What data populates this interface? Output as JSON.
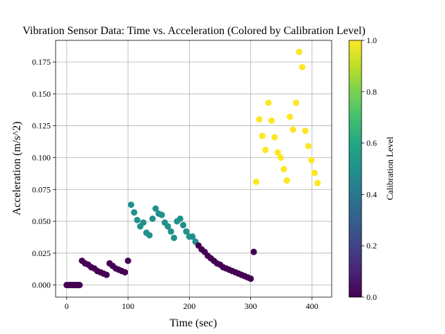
{
  "chart_data": {
    "type": "scatter",
    "title": "Vibration Sensor Data: Time vs. Acceleration (Colored by Calibration Level)",
    "xlabel": "Time (sec)",
    "ylabel": "Acceleration (m/s^2)",
    "xlim": [
      -18,
      432
    ],
    "ylim": [
      -0.0095,
      0.192
    ],
    "xticks": [
      0,
      100,
      200,
      300,
      400
    ],
    "yticks": [
      0.0,
      0.025,
      0.05,
      0.075,
      0.1,
      0.125,
      0.15,
      0.175
    ],
    "xtick_labels": [
      "0",
      "100",
      "200",
      "300",
      "400"
    ],
    "ytick_labels": [
      "0.000",
      "0.025",
      "0.050",
      "0.075",
      "0.100",
      "0.125",
      "0.150",
      "0.175"
    ],
    "grid": true,
    "colormap": "viridis",
    "colorbar": {
      "label": "Calibration Level",
      "range": [
        0.0,
        1.0
      ],
      "ticks": [
        0.0,
        0.2,
        0.4,
        0.6,
        0.8,
        1.0
      ],
      "tick_labels": [
        "0.0",
        "0.2",
        "0.4",
        "0.6",
        "0.8",
        "1.0"
      ]
    },
    "points": [
      {
        "x": 0,
        "y": 0.0,
        "c": 0.0
      },
      {
        "x": 3,
        "y": 0.0,
        "c": 0.0
      },
      {
        "x": 6,
        "y": 0.0,
        "c": 0.0
      },
      {
        "x": 9,
        "y": 0.0,
        "c": 0.0
      },
      {
        "x": 12,
        "y": 0.0,
        "c": 0.0
      },
      {
        "x": 15,
        "y": 0.0,
        "c": 0.0
      },
      {
        "x": 18,
        "y": 0.0,
        "c": 0.0
      },
      {
        "x": 21,
        "y": 0.0,
        "c": 0.0
      },
      {
        "x": 25,
        "y": 0.019,
        "c": 0.0
      },
      {
        "x": 30,
        "y": 0.017,
        "c": 0.0
      },
      {
        "x": 35,
        "y": 0.016,
        "c": 0.0
      },
      {
        "x": 40,
        "y": 0.014,
        "c": 0.0
      },
      {
        "x": 45,
        "y": 0.013,
        "c": 0.0
      },
      {
        "x": 50,
        "y": 0.011,
        "c": 0.0
      },
      {
        "x": 55,
        "y": 0.01,
        "c": 0.0
      },
      {
        "x": 60,
        "y": 0.009,
        "c": 0.0
      },
      {
        "x": 65,
        "y": 0.008,
        "c": 0.0
      },
      {
        "x": 70,
        "y": 0.017,
        "c": 0.0
      },
      {
        "x": 75,
        "y": 0.015,
        "c": 0.0
      },
      {
        "x": 80,
        "y": 0.013,
        "c": 0.0
      },
      {
        "x": 85,
        "y": 0.012,
        "c": 0.0
      },
      {
        "x": 90,
        "y": 0.011,
        "c": 0.0
      },
      {
        "x": 95,
        "y": 0.01,
        "c": 0.0
      },
      {
        "x": 100,
        "y": 0.019,
        "c": 0.0
      },
      {
        "x": 105,
        "y": 0.063,
        "c": 0.5
      },
      {
        "x": 110,
        "y": 0.057,
        "c": 0.5
      },
      {
        "x": 115,
        "y": 0.051,
        "c": 0.5
      },
      {
        "x": 120,
        "y": 0.046,
        "c": 0.5
      },
      {
        "x": 125,
        "y": 0.049,
        "c": 0.5
      },
      {
        "x": 130,
        "y": 0.041,
        "c": 0.5
      },
      {
        "x": 135,
        "y": 0.039,
        "c": 0.5
      },
      {
        "x": 140,
        "y": 0.052,
        "c": 0.5
      },
      {
        "x": 145,
        "y": 0.06,
        "c": 0.5
      },
      {
        "x": 150,
        "y": 0.056,
        "c": 0.5
      },
      {
        "x": 155,
        "y": 0.055,
        "c": 0.5
      },
      {
        "x": 160,
        "y": 0.049,
        "c": 0.5
      },
      {
        "x": 165,
        "y": 0.046,
        "c": 0.5
      },
      {
        "x": 170,
        "y": 0.042,
        "c": 0.5
      },
      {
        "x": 175,
        "y": 0.037,
        "c": 0.5
      },
      {
        "x": 180,
        "y": 0.05,
        "c": 0.5
      },
      {
        "x": 185,
        "y": 0.052,
        "c": 0.5
      },
      {
        "x": 190,
        "y": 0.047,
        "c": 0.5
      },
      {
        "x": 195,
        "y": 0.042,
        "c": 0.5
      },
      {
        "x": 200,
        "y": 0.038,
        "c": 0.5
      },
      {
        "x": 205,
        "y": 0.038,
        "c": 0.5
      },
      {
        "x": 210,
        "y": 0.034,
        "c": 0.5
      },
      {
        "x": 215,
        "y": 0.031,
        "c": 0.0
      },
      {
        "x": 220,
        "y": 0.028,
        "c": 0.0
      },
      {
        "x": 225,
        "y": 0.026,
        "c": 0.0
      },
      {
        "x": 230,
        "y": 0.023,
        "c": 0.0
      },
      {
        "x": 235,
        "y": 0.021,
        "c": 0.0
      },
      {
        "x": 240,
        "y": 0.019,
        "c": 0.0
      },
      {
        "x": 245,
        "y": 0.017,
        "c": 0.0
      },
      {
        "x": 250,
        "y": 0.016,
        "c": 0.0
      },
      {
        "x": 255,
        "y": 0.014,
        "c": 0.0
      },
      {
        "x": 260,
        "y": 0.013,
        "c": 0.0
      },
      {
        "x": 265,
        "y": 0.012,
        "c": 0.0
      },
      {
        "x": 270,
        "y": 0.011,
        "c": 0.0
      },
      {
        "x": 275,
        "y": 0.01,
        "c": 0.0
      },
      {
        "x": 280,
        "y": 0.009,
        "c": 0.0
      },
      {
        "x": 285,
        "y": 0.008,
        "c": 0.0
      },
      {
        "x": 290,
        "y": 0.007,
        "c": 0.0
      },
      {
        "x": 295,
        "y": 0.006,
        "c": 0.0
      },
      {
        "x": 300,
        "y": 0.005,
        "c": 0.0
      },
      {
        "x": 305,
        "y": 0.026,
        "c": 0.0
      },
      {
        "x": 309,
        "y": 0.081,
        "c": 1.0
      },
      {
        "x": 314,
        "y": 0.13,
        "c": 1.0
      },
      {
        "x": 319,
        "y": 0.117,
        "c": 1.0
      },
      {
        "x": 324,
        "y": 0.106,
        "c": 1.0
      },
      {
        "x": 329,
        "y": 0.143,
        "c": 1.0
      },
      {
        "x": 334,
        "y": 0.129,
        "c": 1.0
      },
      {
        "x": 339,
        "y": 0.116,
        "c": 1.0
      },
      {
        "x": 344,
        "y": 0.104,
        "c": 1.0
      },
      {
        "x": 349,
        "y": 0.1,
        "c": 1.0
      },
      {
        "x": 354,
        "y": 0.091,
        "c": 1.0
      },
      {
        "x": 359,
        "y": 0.082,
        "c": 1.0
      },
      {
        "x": 364,
        "y": 0.132,
        "c": 1.0
      },
      {
        "x": 369,
        "y": 0.122,
        "c": 1.0
      },
      {
        "x": 374,
        "y": 0.143,
        "c": 1.0
      },
      {
        "x": 379,
        "y": 0.183,
        "c": 1.0
      },
      {
        "x": 384,
        "y": 0.171,
        "c": 1.0
      },
      {
        "x": 389,
        "y": 0.121,
        "c": 1.0
      },
      {
        "x": 394,
        "y": 0.109,
        "c": 1.0
      },
      {
        "x": 399,
        "y": 0.098,
        "c": 1.0
      },
      {
        "x": 404,
        "y": 0.088,
        "c": 1.0
      },
      {
        "x": 409,
        "y": 0.08,
        "c": 1.0
      }
    ]
  }
}
